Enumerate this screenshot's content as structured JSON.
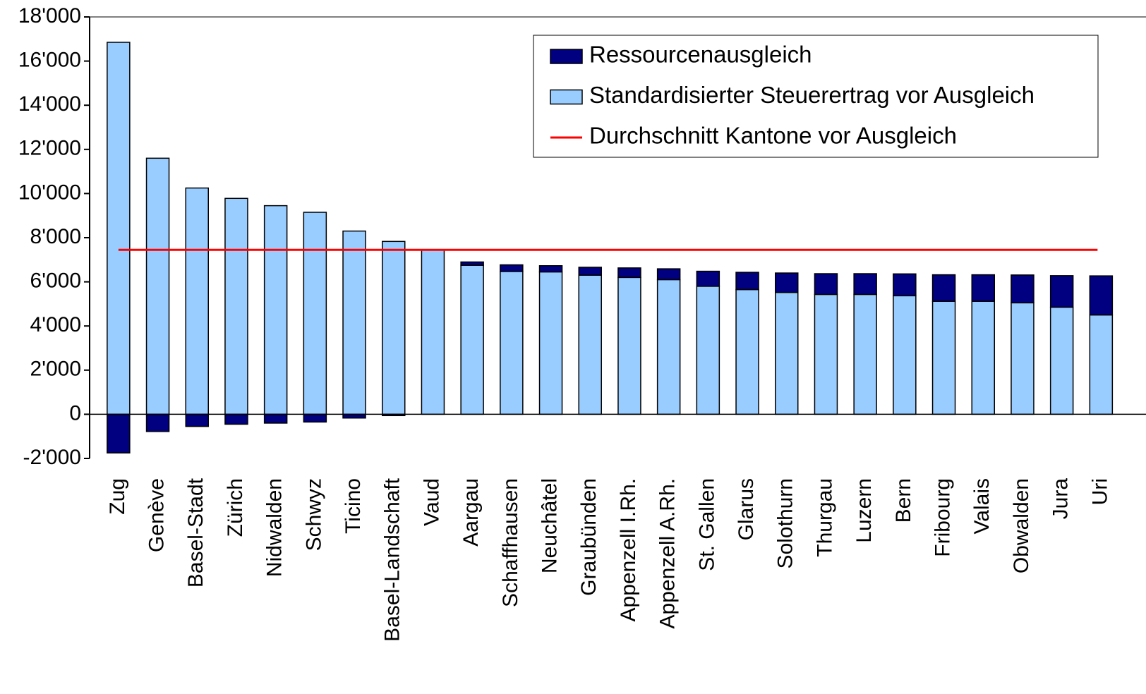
{
  "chart_data": {
    "type": "stacked_bar",
    "categories": [
      "Zug",
      "Genève",
      "Basel-Stadt",
      "Zürich",
      "Nidwalden",
      "Schwyz",
      "Ticino",
      "Basel-Landschaft",
      "Vaud",
      "Aargau",
      "Schaffhausen",
      "Neuchâtel",
      "Graubünden",
      "Appenzell I.Rh.",
      "Appenzell A.Rh.",
      "St. Gallen",
      "Glarus",
      "Solothurn",
      "Thurgau",
      "Luzern",
      "Bern",
      "Fribourg",
      "Valais",
      "Obwalden",
      "Jura",
      "Uri"
    ],
    "series": [
      {
        "name": "Standardisierter Steuerertrag vor Ausgleich",
        "color": "#99ccff",
        "values": [
          16850,
          11600,
          10250,
          9780,
          9450,
          9150,
          8300,
          7830,
          7450,
          6750,
          6470,
          6450,
          6300,
          6200,
          6100,
          5800,
          5650,
          5520,
          5430,
          5430,
          5370,
          5120,
          5120,
          5050,
          4850,
          4500
        ]
      },
      {
        "name": "Ressourcenausgleich",
        "color": "#000080",
        "values": [
          -1750,
          -780,
          -550,
          -450,
          -400,
          -350,
          -170,
          -60,
          0,
          150,
          300,
          280,
          360,
          430,
          490,
          680,
          780,
          880,
          940,
          940,
          990,
          1200,
          1200,
          1260,
          1430,
          1770
        ]
      }
    ],
    "average": {
      "name": "Durchschnitt Kantone vor Ausgleich",
      "color": "#ff0000",
      "value": 7450
    },
    "ylim": [
      -2000,
      18000
    ],
    "yticks": [
      {
        "value": -2000,
        "label": "-2'000"
      },
      0,
      {
        "value": 2000,
        "label": "2'000"
      },
      {
        "value": 4000,
        "label": "4'000"
      },
      {
        "value": 6000,
        "label": "6'000"
      },
      {
        "value": 8000,
        "label": "8'000"
      },
      {
        "value": 10000,
        "label": "10'000"
      },
      {
        "value": 12000,
        "label": "12'000"
      },
      {
        "value": 14000,
        "label": "14'000"
      },
      {
        "value": 16000,
        "label": "16'000"
      },
      {
        "value": 18000,
        "label": "18'000"
      }
    ],
    "legend": "top-right"
  }
}
